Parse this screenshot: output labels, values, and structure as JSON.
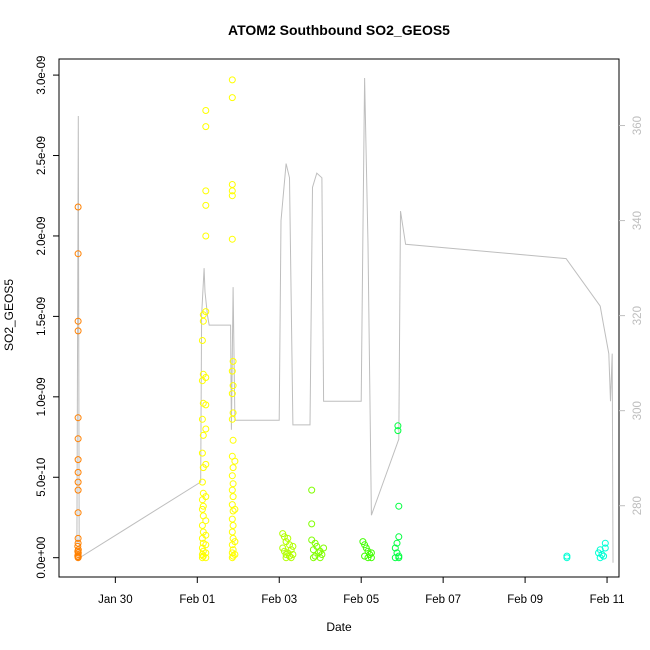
{
  "chart_data": {
    "type": "scatter",
    "title": "ATOM2 Southbound SO2_GEOS5",
    "xlabel": "Date",
    "ylabel": "SO2_GEOS5",
    "xlim": [
      "2017-01-28T15:00",
      "2017-02-11T07:00"
    ],
    "ylim": [
      -1.2e-10,
      3.1e-09
    ],
    "x_ticks": [
      {
        "date": "2017-01-30",
        "label": "Jan 30"
      },
      {
        "date": "2017-02-01",
        "label": "Feb 01"
      },
      {
        "date": "2017-02-03",
        "label": "Feb 03"
      },
      {
        "date": "2017-02-05",
        "label": "Feb 05"
      },
      {
        "date": "2017-02-07",
        "label": "Feb 07"
      },
      {
        "date": "2017-02-09",
        "label": "Feb 09"
      },
      {
        "date": "2017-02-11",
        "label": "Feb 11"
      }
    ],
    "y_ticks": [
      {
        "value": 0,
        "label": "0.0e+00"
      },
      {
        "value": 5e-10,
        "label": "5.0e-10"
      },
      {
        "value": 1e-09,
        "label": "1.0e-09"
      },
      {
        "value": 1.5e-09,
        "label": "1.5e-09"
      },
      {
        "value": 2e-09,
        "label": "2.0e-09"
      },
      {
        "value": 2.5e-09,
        "label": "2.5e-09"
      },
      {
        "value": 3e-09,
        "label": "3.0e-09"
      }
    ],
    "y2lim": [
      265,
      374
    ],
    "y2_ticks": [
      {
        "value": 280,
        "label": "280"
      },
      {
        "value": 300,
        "label": "300"
      },
      {
        "value": 320,
        "label": "320"
      },
      {
        "value": 340,
        "label": "340"
      },
      {
        "value": 360,
        "label": "360"
      }
    ],
    "secondary_color": "#bebebe",
    "frame_color": "#000000",
    "grid": false,
    "legend": "none",
    "series": [
      {
        "color": "#ff8000",
        "points": [
          [
            "2017-01-29T02:10",
            2.18e-09
          ],
          [
            "2017-01-29T02:10",
            1.89e-09
          ],
          [
            "2017-01-29T02:10",
            1.47e-09
          ],
          [
            "2017-01-29T02:10",
            1.41e-09
          ],
          [
            "2017-01-29T02:10",
            8.7e-10
          ],
          [
            "2017-01-29T02:10",
            7.4e-10
          ],
          [
            "2017-01-29T02:10",
            6.1e-10
          ],
          [
            "2017-01-29T02:10",
            5.3e-10
          ],
          [
            "2017-01-29T02:10",
            4.7e-10
          ],
          [
            "2017-01-29T02:10",
            4.2e-10
          ],
          [
            "2017-01-29T02:10",
            2.8e-10
          ],
          [
            "2017-01-29T02:10",
            1.2e-10
          ],
          [
            "2017-01-29T02:10",
            9e-11
          ],
          [
            "2017-01-29T02:00",
            7e-11
          ],
          [
            "2017-01-29T02:20",
            5e-11
          ],
          [
            "2017-01-29T02:00",
            4e-11
          ],
          [
            "2017-01-29T02:20",
            3e-11
          ],
          [
            "2017-01-29T02:10",
            2e-11
          ],
          [
            "2017-01-29T02:00",
            1e-11
          ],
          [
            "2017-01-29T02:20",
            5e-12
          ],
          [
            "2017-01-29T02:10",
            0
          ]
        ]
      },
      {
        "color": "#ffff00",
        "points": [
          [
            "2017-02-01T03:30",
            1.51e-09
          ],
          [
            "2017-02-01T03:30",
            1.47e-09
          ],
          [
            "2017-02-01T03:00",
            1.35e-09
          ],
          [
            "2017-02-01T03:30",
            1.14e-09
          ],
          [
            "2017-02-01T03:00",
            1.1e-09
          ],
          [
            "2017-02-01T03:30",
            9.6e-10
          ],
          [
            "2017-02-01T03:00",
            8.6e-10
          ],
          [
            "2017-02-01T03:30",
            7.6e-10
          ],
          [
            "2017-02-01T03:00",
            6.5e-10
          ],
          [
            "2017-02-01T03:30",
            5.6e-10
          ],
          [
            "2017-02-01T03:00",
            4.7e-10
          ],
          [
            "2017-02-01T03:30",
            4e-10
          ],
          [
            "2017-02-01T03:00",
            3.6e-10
          ],
          [
            "2017-02-01T03:30",
            3.2e-10
          ],
          [
            "2017-02-01T03:00",
            3e-10
          ],
          [
            "2017-02-01T03:30",
            2.6e-10
          ],
          [
            "2017-02-01T03:00",
            2e-10
          ],
          [
            "2017-02-01T03:30",
            1.6e-10
          ],
          [
            "2017-02-01T03:00",
            1.2e-10
          ],
          [
            "2017-02-01T03:30",
            9e-11
          ],
          [
            "2017-02-01T03:00",
            6e-11
          ],
          [
            "2017-02-01T03:30",
            4e-11
          ],
          [
            "2017-02-01T03:00",
            2e-11
          ],
          [
            "2017-02-01T03:30",
            1e-11
          ],
          [
            "2017-02-01T03:00",
            0
          ],
          [
            "2017-02-01T05:00",
            2.78e-09
          ],
          [
            "2017-02-01T05:00",
            2.68e-09
          ],
          [
            "2017-02-01T05:00",
            2.28e-09
          ],
          [
            "2017-02-01T05:00",
            2.19e-09
          ],
          [
            "2017-02-01T05:00",
            2e-09
          ],
          [
            "2017-02-01T05:00",
            1.53e-09
          ],
          [
            "2017-02-01T05:00",
            1.12e-09
          ],
          [
            "2017-02-01T05:00",
            9.5e-10
          ],
          [
            "2017-02-01T05:00",
            8e-10
          ],
          [
            "2017-02-01T05:00",
            5.8e-10
          ],
          [
            "2017-02-01T05:00",
            3.8e-10
          ],
          [
            "2017-02-01T05:00",
            2.3e-10
          ],
          [
            "2017-02-01T05:00",
            1.4e-10
          ],
          [
            "2017-02-01T05:00",
            8e-11
          ],
          [
            "2017-02-01T05:00",
            3e-11
          ],
          [
            "2017-02-01T05:00",
            0
          ],
          [
            "2017-02-01T20:30",
            2.97e-09
          ],
          [
            "2017-02-01T20:30",
            2.86e-09
          ],
          [
            "2017-02-01T20:30",
            2.32e-09
          ],
          [
            "2017-02-01T20:30",
            2.28e-09
          ],
          [
            "2017-02-01T20:30",
            2.25e-09
          ],
          [
            "2017-02-01T20:30",
            1.98e-09
          ],
          [
            "2017-02-01T21:00",
            1.22e-09
          ],
          [
            "2017-02-01T20:30",
            1.16e-09
          ],
          [
            "2017-02-01T21:00",
            1.07e-09
          ],
          [
            "2017-02-01T20:30",
            1.02e-09
          ],
          [
            "2017-02-01T21:00",
            9e-10
          ],
          [
            "2017-02-01T20:30",
            8.6e-10
          ],
          [
            "2017-02-01T21:00",
            7.3e-10
          ],
          [
            "2017-02-01T20:30",
            6.3e-10
          ],
          [
            "2017-02-01T21:00",
            5.6e-10
          ],
          [
            "2017-02-01T20:30",
            5.1e-10
          ],
          [
            "2017-02-01T21:00",
            4.6e-10
          ],
          [
            "2017-02-01T20:30",
            4.2e-10
          ],
          [
            "2017-02-01T21:00",
            3.8e-10
          ],
          [
            "2017-02-01T20:30",
            3.3e-10
          ],
          [
            "2017-02-01T21:00",
            2.9e-10
          ],
          [
            "2017-02-01T20:30",
            2.4e-10
          ],
          [
            "2017-02-01T21:00",
            2e-10
          ],
          [
            "2017-02-01T20:30",
            1.6e-10
          ],
          [
            "2017-02-01T21:00",
            1.2e-10
          ],
          [
            "2017-02-01T20:30",
            8e-11
          ],
          [
            "2017-02-01T21:00",
            5e-11
          ],
          [
            "2017-02-01T20:30",
            3e-11
          ],
          [
            "2017-02-01T21:00",
            1e-11
          ],
          [
            "2017-02-01T20:30",
            0
          ],
          [
            "2017-02-01T22:00",
            6e-10
          ],
          [
            "2017-02-01T22:00",
            3e-10
          ],
          [
            "2017-02-01T22:00",
            1e-10
          ],
          [
            "2017-02-01T22:00",
            2e-11
          ]
        ]
      },
      {
        "color": "#b3ff00",
        "points": [
          [
            "2017-02-03T02:00",
            1.5e-10
          ],
          [
            "2017-02-03T03:00",
            1.3e-10
          ],
          [
            "2017-02-03T04:00",
            1e-10
          ],
          [
            "2017-02-03T05:00",
            1.2e-10
          ],
          [
            "2017-02-03T06:00",
            8e-11
          ],
          [
            "2017-02-03T02:00",
            6e-11
          ],
          [
            "2017-02-03T03:00",
            4e-11
          ],
          [
            "2017-02-03T04:00",
            2e-11
          ],
          [
            "2017-02-03T05:00",
            3e-11
          ],
          [
            "2017-02-03T06:00",
            1e-11
          ],
          [
            "2017-02-03T07:00",
            5e-11
          ],
          [
            "2017-02-03T07:00",
            0
          ],
          [
            "2017-02-03T08:00",
            7e-11
          ],
          [
            "2017-02-03T08:00",
            2e-11
          ],
          [
            "2017-02-03T04:00",
            0
          ]
        ]
      },
      {
        "color": "#80ff00",
        "points": [
          [
            "2017-02-03T19:00",
            4.2e-10
          ],
          [
            "2017-02-03T19:00",
            2.1e-10
          ],
          [
            "2017-02-03T19:00",
            1.1e-10
          ],
          [
            "2017-02-03T21:00",
            9e-11
          ],
          [
            "2017-02-03T22:00",
            7e-11
          ],
          [
            "2017-02-03T20:00",
            5e-11
          ],
          [
            "2017-02-03T23:00",
            3e-11
          ],
          [
            "2017-02-03T21:00",
            1e-11
          ],
          [
            "2017-02-04T00:00",
            4e-11
          ],
          [
            "2017-02-04T01:00",
            2e-11
          ],
          [
            "2017-02-04T02:00",
            6e-11
          ],
          [
            "2017-02-03T20:00",
            0
          ],
          [
            "2017-02-04T00:00",
            0
          ]
        ]
      },
      {
        "color": "#40ff00",
        "points": [
          [
            "2017-02-05T01:00",
            1e-10
          ],
          [
            "2017-02-05T02:00",
            8e-11
          ],
          [
            "2017-02-05T03:00",
            6e-11
          ],
          [
            "2017-02-05T04:00",
            4e-11
          ],
          [
            "2017-02-05T05:00",
            2e-11
          ],
          [
            "2017-02-05T06:00",
            3e-11
          ],
          [
            "2017-02-05T02:00",
            1e-11
          ],
          [
            "2017-02-05T04:00",
            0
          ],
          [
            "2017-02-05T06:00",
            0
          ]
        ]
      },
      {
        "color": "#00ff40",
        "points": [
          [
            "2017-02-05T21:30",
            8.2e-10
          ],
          [
            "2017-02-05T21:30",
            7.9e-10
          ],
          [
            "2017-02-05T22:00",
            3.2e-10
          ],
          [
            "2017-02-05T22:00",
            1.3e-10
          ],
          [
            "2017-02-05T21:00",
            9e-11
          ],
          [
            "2017-02-05T20:00",
            6e-11
          ],
          [
            "2017-02-05T21:00",
            3e-11
          ],
          [
            "2017-02-05T22:00",
            1e-11
          ],
          [
            "2017-02-05T20:00",
            0
          ],
          [
            "2017-02-05T22:00",
            0
          ]
        ]
      },
      {
        "color": "#00ffd5",
        "points": [
          [
            "2017-02-10T00:30",
            1e-11
          ],
          [
            "2017-02-10T00:30",
            0
          ],
          [
            "2017-02-10T19:00",
            3e-11
          ],
          [
            "2017-02-10T20:00",
            5e-11
          ],
          [
            "2017-02-10T21:00",
            2e-11
          ],
          [
            "2017-02-10T22:00",
            1e-11
          ],
          [
            "2017-02-10T23:00",
            6e-11
          ],
          [
            "2017-02-10T23:00",
            9e-11
          ],
          [
            "2017-02-10T20:00",
            0
          ]
        ]
      }
    ],
    "secondary_series": {
      "color": "#bebebe",
      "points": [
        [
          "2017-01-29T01:30",
          272
        ],
        [
          "2017-01-29T02:20",
          362
        ],
        [
          "2017-01-29T02:50",
          269
        ],
        [
          "2017-02-01T02:00",
          285
        ],
        [
          "2017-02-01T02:30",
          320
        ],
        [
          "2017-02-01T04:00",
          330
        ],
        [
          "2017-02-01T04:30",
          325
        ],
        [
          "2017-02-01T06:00",
          320
        ],
        [
          "2017-02-01T07:00",
          318
        ],
        [
          "2017-02-01T19:30",
          318
        ],
        [
          "2017-02-01T20:00",
          296
        ],
        [
          "2017-02-01T21:00",
          326
        ],
        [
          "2017-02-01T22:00",
          298
        ],
        [
          "2017-02-03T00:00",
          298
        ],
        [
          "2017-02-03T01:00",
          340
        ],
        [
          "2017-02-03T04:00",
          352
        ],
        [
          "2017-02-03T06:00",
          349
        ],
        [
          "2017-02-03T08:00",
          297
        ],
        [
          "2017-02-03T18:00",
          297
        ],
        [
          "2017-02-03T19:30",
          347
        ],
        [
          "2017-02-03T22:00",
          350
        ],
        [
          "2017-02-04T01:00",
          349
        ],
        [
          "2017-02-04T02:00",
          302
        ],
        [
          "2017-02-05T00:00",
          302
        ],
        [
          "2017-02-05T01:00",
          337
        ],
        [
          "2017-02-05T02:00",
          370
        ],
        [
          "2017-02-05T04:00",
          335
        ],
        [
          "2017-02-05T06:00",
          278
        ],
        [
          "2017-02-05T22:00",
          294
        ],
        [
          "2017-02-05T23:00",
          342
        ],
        [
          "2017-02-06T02:00",
          335
        ],
        [
          "2017-02-10T00:00",
          332
        ],
        [
          "2017-02-10T20:00",
          322
        ],
        [
          "2017-02-10T22:00",
          318
        ],
        [
          "2017-02-11T01:00",
          312
        ],
        [
          "2017-02-11T02:00",
          302
        ],
        [
          "2017-02-11T03:00",
          312
        ],
        [
          "2017-02-11T03:30",
          268
        ]
      ]
    }
  }
}
